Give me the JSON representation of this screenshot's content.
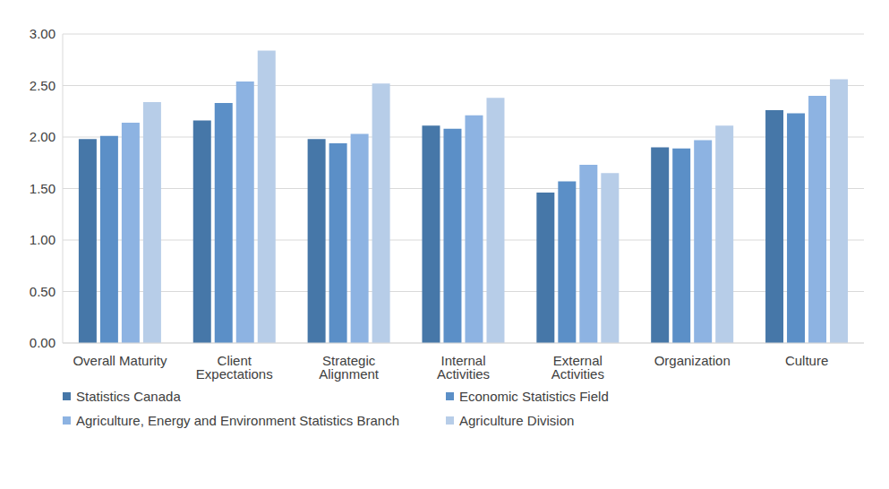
{
  "chart_data": {
    "type": "bar",
    "categories": [
      "Overall Maturity",
      "Client Expectations",
      "Strategic Alignment",
      "Internal Activities",
      "External Activities",
      "Organization",
      "Culture"
    ],
    "series": [
      {
        "name": "Statistics Canada",
        "color": "#4677a8",
        "values": [
          1.98,
          2.16,
          1.98,
          2.11,
          1.46,
          1.9,
          2.26
        ]
      },
      {
        "name": "Economic Statistics Field",
        "color": "#5b8fc7",
        "values": [
          2.01,
          2.33,
          1.94,
          2.08,
          1.57,
          1.89,
          2.23
        ]
      },
      {
        "name": "Agriculture, Energy and Environment Statistics Branch",
        "color": "#8db3e2",
        "values": [
          2.14,
          2.54,
          2.03,
          2.21,
          1.73,
          1.97,
          2.4
        ]
      },
      {
        "name": "Agriculture Division",
        "color": "#b7cde8",
        "values": [
          2.34,
          2.84,
          2.52,
          2.38,
          1.65,
          2.11,
          2.56
        ]
      }
    ],
    "ylim": [
      0,
      3
    ],
    "yticks": [
      {
        "value": 0,
        "label": "0.00"
      },
      {
        "value": 0.5,
        "label": "0.50"
      },
      {
        "value": 1,
        "label": "1.00"
      },
      {
        "value": 1.5,
        "label": "1.50"
      },
      {
        "value": 2,
        "label": "2.00"
      },
      {
        "value": 2.5,
        "label": "2.50"
      },
      {
        "value": 3,
        "label": "3.00"
      }
    ],
    "grid": true,
    "legend": "bottom"
  }
}
